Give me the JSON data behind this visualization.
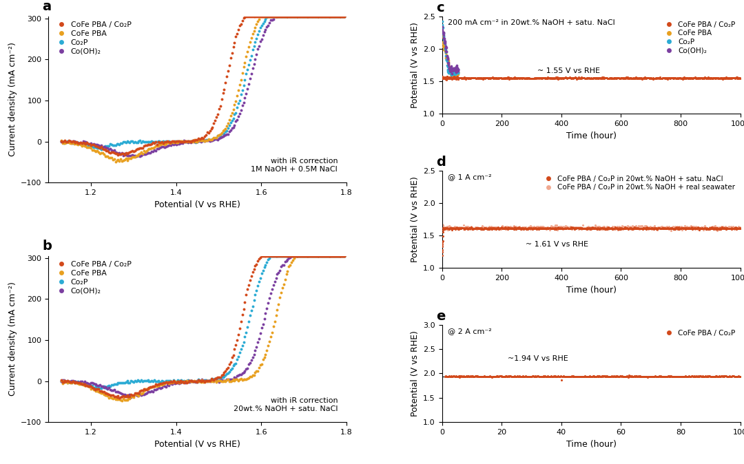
{
  "panel_a": {
    "label": "a",
    "xlabel": "Potential (V vs RHE)",
    "ylabel": "Current density (mA cm⁻²)",
    "annotation": "with iR correction\n1M NaOH + 0.5M NaCl",
    "xlim": [
      1.1,
      1.8
    ],
    "ylim": [
      -100,
      305
    ],
    "xticks": [
      1.2,
      1.4,
      1.6,
      1.8
    ],
    "yticks": [
      -100,
      0,
      100,
      200,
      300
    ]
  },
  "panel_b": {
    "label": "b",
    "xlabel": "Potential (V vs RHE)",
    "ylabel": "Current density (mA cm⁻²)",
    "annotation": "with iR correction\n20wt.% NaOH + satu. NaCl",
    "xlim": [
      1.1,
      1.8
    ],
    "ylim": [
      -100,
      305
    ],
    "xticks": [
      1.2,
      1.4,
      1.6,
      1.8
    ],
    "yticks": [
      -100,
      0,
      100,
      200,
      300
    ]
  },
  "panel_c": {
    "label": "c",
    "xlabel": "Time (hour)",
    "ylabel": "Potential (V vs RHE)",
    "annotation": "200 mA cm⁻² in 20wt.% NaOH + satu. NaCl",
    "hline_label": "~ 1.55 V vs RHE",
    "hline_val": 1.55,
    "xlim": [
      0,
      1000
    ],
    "ylim": [
      1.0,
      2.5
    ],
    "xticks": [
      0,
      200,
      400,
      600,
      800,
      1000
    ],
    "yticks": [
      1.0,
      1.5,
      2.0,
      2.5
    ]
  },
  "panel_d": {
    "label": "d",
    "xlabel": "Time (hour)",
    "ylabel": "Potential (V vs RHE)",
    "annotation": "@ 1 A cm⁻²",
    "hline_label": "~ 1.61 V vs RHE",
    "hline_val": 1.61,
    "xlim": [
      0,
      1000
    ],
    "ylim": [
      1.0,
      2.5
    ],
    "xticks": [
      0,
      200,
      400,
      600,
      800,
      1000
    ],
    "yticks": [
      1.0,
      1.5,
      2.0,
      2.5
    ]
  },
  "panel_e": {
    "label": "e",
    "xlabel": "Time (hour)",
    "ylabel": "Potential (V vs RHE)",
    "annotation": "@ 2 A cm⁻²",
    "hline_label": "~1.94 V vs RHE",
    "hline_val": 1.94,
    "xlim": [
      0,
      100
    ],
    "ylim": [
      1.0,
      3.0
    ],
    "xticks": [
      0,
      20,
      40,
      60,
      80,
      100
    ],
    "yticks": [
      1.0,
      1.5,
      2.0,
      2.5,
      3.0
    ]
  },
  "colors": {
    "cofepba_co2p": "#D2491B",
    "cofepba": "#E8A020",
    "co2p": "#2BABD4",
    "cohoh2": "#7B3FA0",
    "cofepba_co2p_light": "#F0A890"
  },
  "legend_ab": [
    {
      "label": "CoFe PBA / Co₂P",
      "color": "#D2491B"
    },
    {
      "label": "CoFe PBA",
      "color": "#E8A020"
    },
    {
      "label": "Co₂P",
      "color": "#2BABD4"
    },
    {
      "label": "Co(OH)₂",
      "color": "#7B3FA0"
    }
  ],
  "legend_c": [
    {
      "label": "CoFe PBA / Co₂P",
      "color": "#D2491B"
    },
    {
      "label": "CoFe PBA",
      "color": "#E8A020"
    },
    {
      "label": "Co₂P",
      "color": "#2BABD4"
    },
    {
      "label": "Co(OH)₂",
      "color": "#7B3FA0"
    }
  ],
  "legend_d": [
    {
      "label": "CoFe PBA / Co₂P in 20wt.% NaOH + satu. NaCl",
      "color": "#D2491B"
    },
    {
      "label": "CoFe PBA / Co₂P in 20wt.% NaOH + real seawater",
      "color": "#F0A890"
    }
  ],
  "legend_e": [
    {
      "label": "CoFe PBA / Co₂P",
      "color": "#D2491B"
    }
  ]
}
